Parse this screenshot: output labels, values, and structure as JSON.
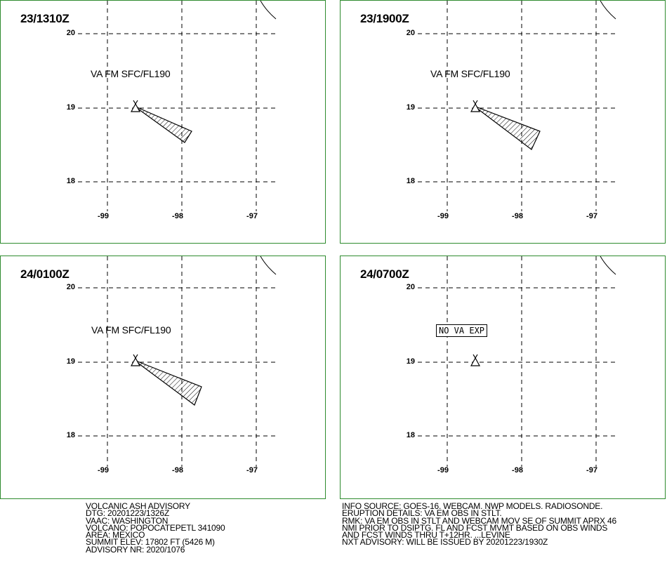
{
  "panels": [
    {
      "title": "23/1310Z",
      "label": "VA FM SFC/FL190",
      "lat_labels": [
        "20",
        "19",
        "18"
      ],
      "lon_labels": [
        "-99",
        "-98",
        "-97"
      ]
    },
    {
      "title": "23/1900Z",
      "label": "VA FM SFC/FL190",
      "lat_labels": [
        "20",
        "19",
        "18"
      ],
      "lon_labels": [
        "-99",
        "-98",
        "-97"
      ]
    },
    {
      "title": "24/0100Z",
      "label": "VA FM SFC/FL190",
      "lat_labels": [
        "20",
        "19",
        "18"
      ],
      "lon_labels": [
        "-99",
        "-98",
        "-97"
      ]
    },
    {
      "title": "24/0700Z",
      "label": "NO VA EXP",
      "lat_labels": [
        "20",
        "19",
        "18"
      ],
      "lon_labels": [
        "-99",
        "-98",
        "-97"
      ]
    }
  ],
  "advisory_left": [
    "VOLCANIC ASH ADVISORY",
    "DTG: 20201223/1326Z",
    "VAAC: WASHINGTON",
    "VOLCANO: POPOCATEPETL 341090",
    "AREA: MEXICO",
    "SUMMIT ELEV: 17802 FT (5426 M)",
    "ADVISORY NR: 2020/1076"
  ],
  "advisory_right": [
    "INFO SOURCE: GOES-16. WEBCAM. NWP MODELS. RADIOSONDE.",
    "ERUPTION DETAILS: VA EM OBS IN STLT.",
    "RMK: VA EM OBS IN STLT AND WEBCAM MOV SE OF SUMMIT APRX 46",
    "NMI PRIOR TO DSIPTG. FL AND FCST MVMT BASED ON OBS WINDS",
    "AND FCST WINDS THRU T+12HR. ...LEVINE",
    "NXT ADVISORY: WILL BE ISSUED BY 20201223/1930Z"
  ],
  "colors": {
    "panel_border": "#2e8b2e",
    "grid": "#000000"
  },
  "icons": {
    "volcano": "volcano-triangle-icon"
  }
}
